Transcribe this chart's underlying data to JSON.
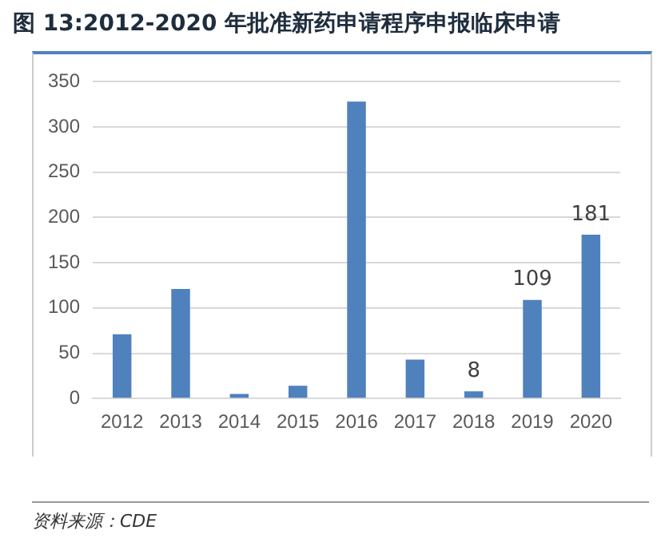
{
  "chart_data": {
    "type": "bar",
    "title": "图 13:2012-2020 年批准新药申请程序申报临床申请",
    "categories": [
      "2012",
      "2013",
      "2014",
      "2015",
      "2016",
      "2017",
      "2018",
      "2019",
      "2020"
    ],
    "values": [
      71,
      121,
      5,
      14,
      328,
      43,
      8,
      109,
      181
    ],
    "value_labels": [
      null,
      null,
      null,
      null,
      null,
      null,
      "8",
      "109",
      "181"
    ],
    "color": "#4f81bd",
    "ylim": [
      0,
      350
    ],
    "yticks": [
      0,
      50,
      100,
      150,
      200,
      250,
      300,
      350
    ],
    "grid": "y",
    "annotations": [
      "资料来源：CDE"
    ]
  }
}
